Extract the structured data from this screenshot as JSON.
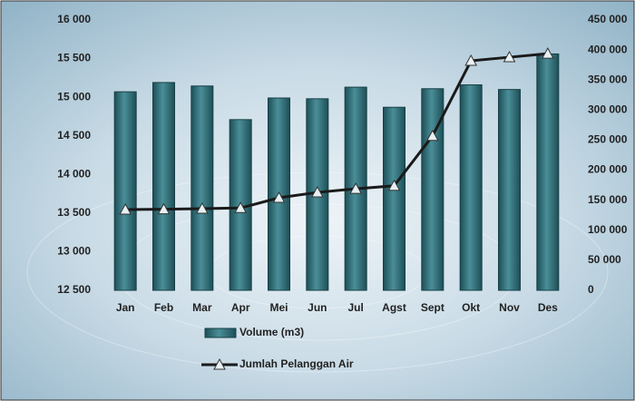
{
  "chart_data": {
    "type": "bar-line",
    "categories": [
      "Jan",
      "Feb",
      "Mar",
      "Apr",
      "Mei",
      "Jun",
      "Jul",
      "Agst",
      "Sept",
      "Okt",
      "Nov",
      "Des"
    ],
    "series": [
      {
        "name": "Volume (m3)",
        "type": "bar",
        "color": "#2f6f79",
        "values": [
          15070,
          15190,
          15145,
          14710,
          14990,
          14980,
          15130,
          14870,
          15110,
          15160,
          15100,
          15560
        ]
      },
      {
        "name": "Jumlah Pelanggan Air",
        "type": "line",
        "axis": "y2",
        "color": "#1a1a1a",
        "values": [
          134400,
          135000,
          136000,
          137000,
          154000,
          163000,
          169000,
          174000,
          257000,
          382000,
          388000,
          394000
        ]
      }
    ],
    "ylim": [
      12500,
      16000
    ],
    "yticks": [
      {
        "value": 12500,
        "label": "12 500"
      },
      {
        "value": 13000,
        "label": "13 000"
      },
      {
        "value": 13500,
        "label": "13 500"
      },
      {
        "value": 14000,
        "label": "14 000"
      },
      {
        "value": 14500,
        "label": "14 500"
      },
      {
        "value": 15000,
        "label": "15 000"
      },
      {
        "value": 15500,
        "label": "15 500"
      },
      {
        "value": 16000,
        "label": "16 000"
      }
    ],
    "y2lim": [
      0,
      450000
    ],
    "y2ticks": [
      0,
      {
        "value": 50000,
        "label": "50 000"
      },
      {
        "value": 100000,
        "label": "100 000"
      },
      {
        "value": 150000,
        "label": "150 000"
      },
      {
        "value": 200000,
        "label": "200 000"
      },
      {
        "value": 250000,
        "label": "250 000"
      },
      {
        "value": 300000,
        "label": "300 000"
      },
      {
        "value": 350000,
        "label": "350 000"
      },
      {
        "value": 400000,
        "label": "400 000"
      },
      {
        "value": 450000,
        "label": "450 000"
      }
    ],
    "grid": false
  }
}
